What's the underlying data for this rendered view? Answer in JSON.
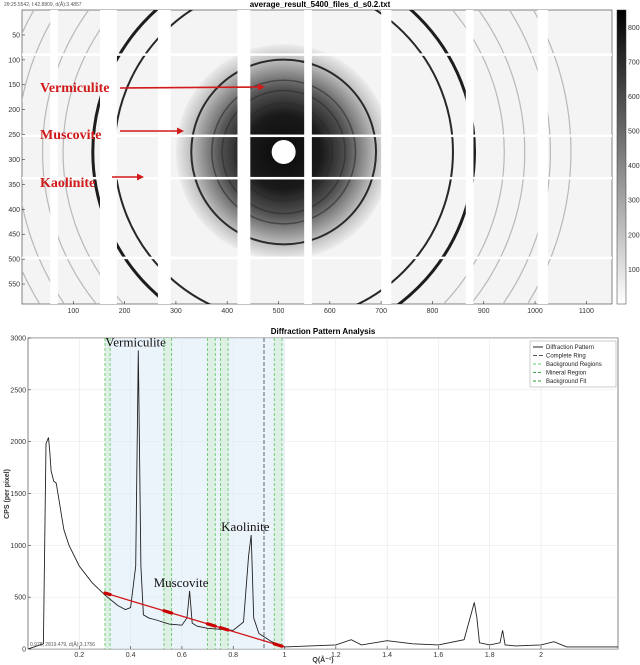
{
  "top": {
    "readout": "2θ:25.5542, I:42.8809, d(Å):3.4857",
    "title": "average_result_5400_files_d_s0.2.txt",
    "x_ticks": [
      100,
      200,
      300,
      400,
      500,
      600,
      700,
      800,
      900,
      1000,
      1100
    ],
    "y_ticks": [
      50,
      100,
      150,
      200,
      250,
      300,
      350,
      400,
      450,
      500,
      550
    ],
    "colorbar_ticks": [
      100,
      200,
      300,
      400,
      500,
      600,
      700,
      800
    ],
    "annotations": [
      {
        "label": "Vermiculite"
      },
      {
        "label": "Muscovite"
      },
      {
        "label": "Kaolinite"
      }
    ]
  },
  "bottom": {
    "title": "Diffraction Pattern Analysis",
    "xlabel": "Q(Å⁻¹)",
    "ylabel": "CPS (per pixel)",
    "readout": "0.978, 2819.479, d(Å):3.1756",
    "peak_labels": [
      {
        "label": "Vermiculite"
      },
      {
        "label": "Muscovite"
      },
      {
        "label": "Kaolinite"
      }
    ],
    "legend": [
      {
        "label": "Diffraction Pattern",
        "color": "#222222",
        "dash": ""
      },
      {
        "label": "Complete Ring",
        "color": "#555555",
        "dash": "4,2"
      },
      {
        "label": "Background Regions",
        "color": "#66cc66",
        "dash": "3,2"
      },
      {
        "label": "Mineral Region",
        "color": "#44aa44",
        "dash": "3,2"
      },
      {
        "label": "Background Fit",
        "color": "#339933",
        "dash": "3,2"
      }
    ]
  },
  "chart_data": [
    {
      "type": "heatmap",
      "title": "average_result_5400_files_d_s0.2.txt",
      "xlim": [
        0,
        1150
      ],
      "ylim": [
        590,
        0
      ],
      "center": [
        510,
        285
      ],
      "rings": [
        {
          "name": "Vermiculite",
          "radius": 180,
          "intensity": 0.85
        },
        {
          "name": "Muscovite",
          "radius": 330,
          "intensity": 0.9
        },
        {
          "name": "Kaolinite",
          "radius": 372,
          "intensity": 0.95
        }
      ],
      "color_range": [
        0,
        850
      ],
      "colormap": "gray_reversed"
    },
    {
      "type": "line",
      "title": "Diffraction Pattern Analysis",
      "xlabel": "Q(Å⁻¹)",
      "ylabel": "CPS (per pixel)",
      "xlim": [
        0,
        2.3
      ],
      "ylim": [
        0,
        3000
      ],
      "x_ticks": [
        0.2,
        0.4,
        0.6,
        0.8,
        1,
        1.2,
        1.4,
        1.6,
        1.8,
        2
      ],
      "y_ticks": [
        0,
        500,
        1000,
        1500,
        2000,
        2500,
        3000
      ],
      "series": [
        {
          "name": "Diffraction Pattern",
          "x": [
            0,
            0.06,
            0.07,
            0.08,
            0.085,
            0.09,
            0.1,
            0.11,
            0.12,
            0.13,
            0.14,
            0.16,
            0.2,
            0.25,
            0.3,
            0.35,
            0.38,
            0.4,
            0.42,
            0.43,
            0.44,
            0.45,
            0.47,
            0.5,
            0.55,
            0.6,
            0.62,
            0.63,
            0.64,
            0.66,
            0.7,
            0.75,
            0.8,
            0.84,
            0.86,
            0.87,
            0.88,
            0.9,
            0.95,
            1.0,
            1.1,
            1.2,
            1.26,
            1.3,
            1.4,
            1.5,
            1.6,
            1.7,
            1.74,
            1.75,
            1.76,
            1.8,
            1.84,
            1.85,
            1.86,
            1.9,
            2.0,
            2.05,
            2.1,
            2.2,
            2.3
          ],
          "y": [
            0,
            50,
            1980,
            2040,
            1900,
            1720,
            1620,
            1600,
            1450,
            1300,
            1150,
            1000,
            800,
            640,
            520,
            420,
            380,
            400,
            800,
            2880,
            800,
            330,
            300,
            280,
            240,
            230,
            300,
            560,
            250,
            220,
            200,
            190,
            180,
            260,
            900,
            1100,
            300,
            150,
            70,
            20,
            30,
            40,
            90,
            40,
            80,
            50,
            40,
            90,
            450,
            300,
            60,
            40,
            60,
            180,
            40,
            30,
            40,
            70,
            20,
            20,
            20
          ]
        },
        {
          "name": "Background Fit",
          "x": [
            0.3,
            1.0
          ],
          "y": [
            540,
            20
          ]
        }
      ],
      "complete_ring_x": 0.92,
      "mineral_regions": [
        [
          0.3,
          0.55
        ],
        [
          0.55,
          0.7
        ],
        [
          0.7,
          1.0
        ]
      ],
      "background_regions": [
        [
          0.3,
          0.32
        ],
        [
          0.53,
          0.56
        ],
        [
          0.7,
          0.73
        ],
        [
          0.75,
          0.78
        ],
        [
          0.96,
          0.99
        ]
      ],
      "annotations": [
        {
          "label": "Vermiculite",
          "x": 0.43,
          "y": 2880
        },
        {
          "label": "Muscovite",
          "x": 0.63,
          "y": 560
        },
        {
          "label": "Kaolinite",
          "x": 0.87,
          "y": 1100
        }
      ]
    }
  ]
}
